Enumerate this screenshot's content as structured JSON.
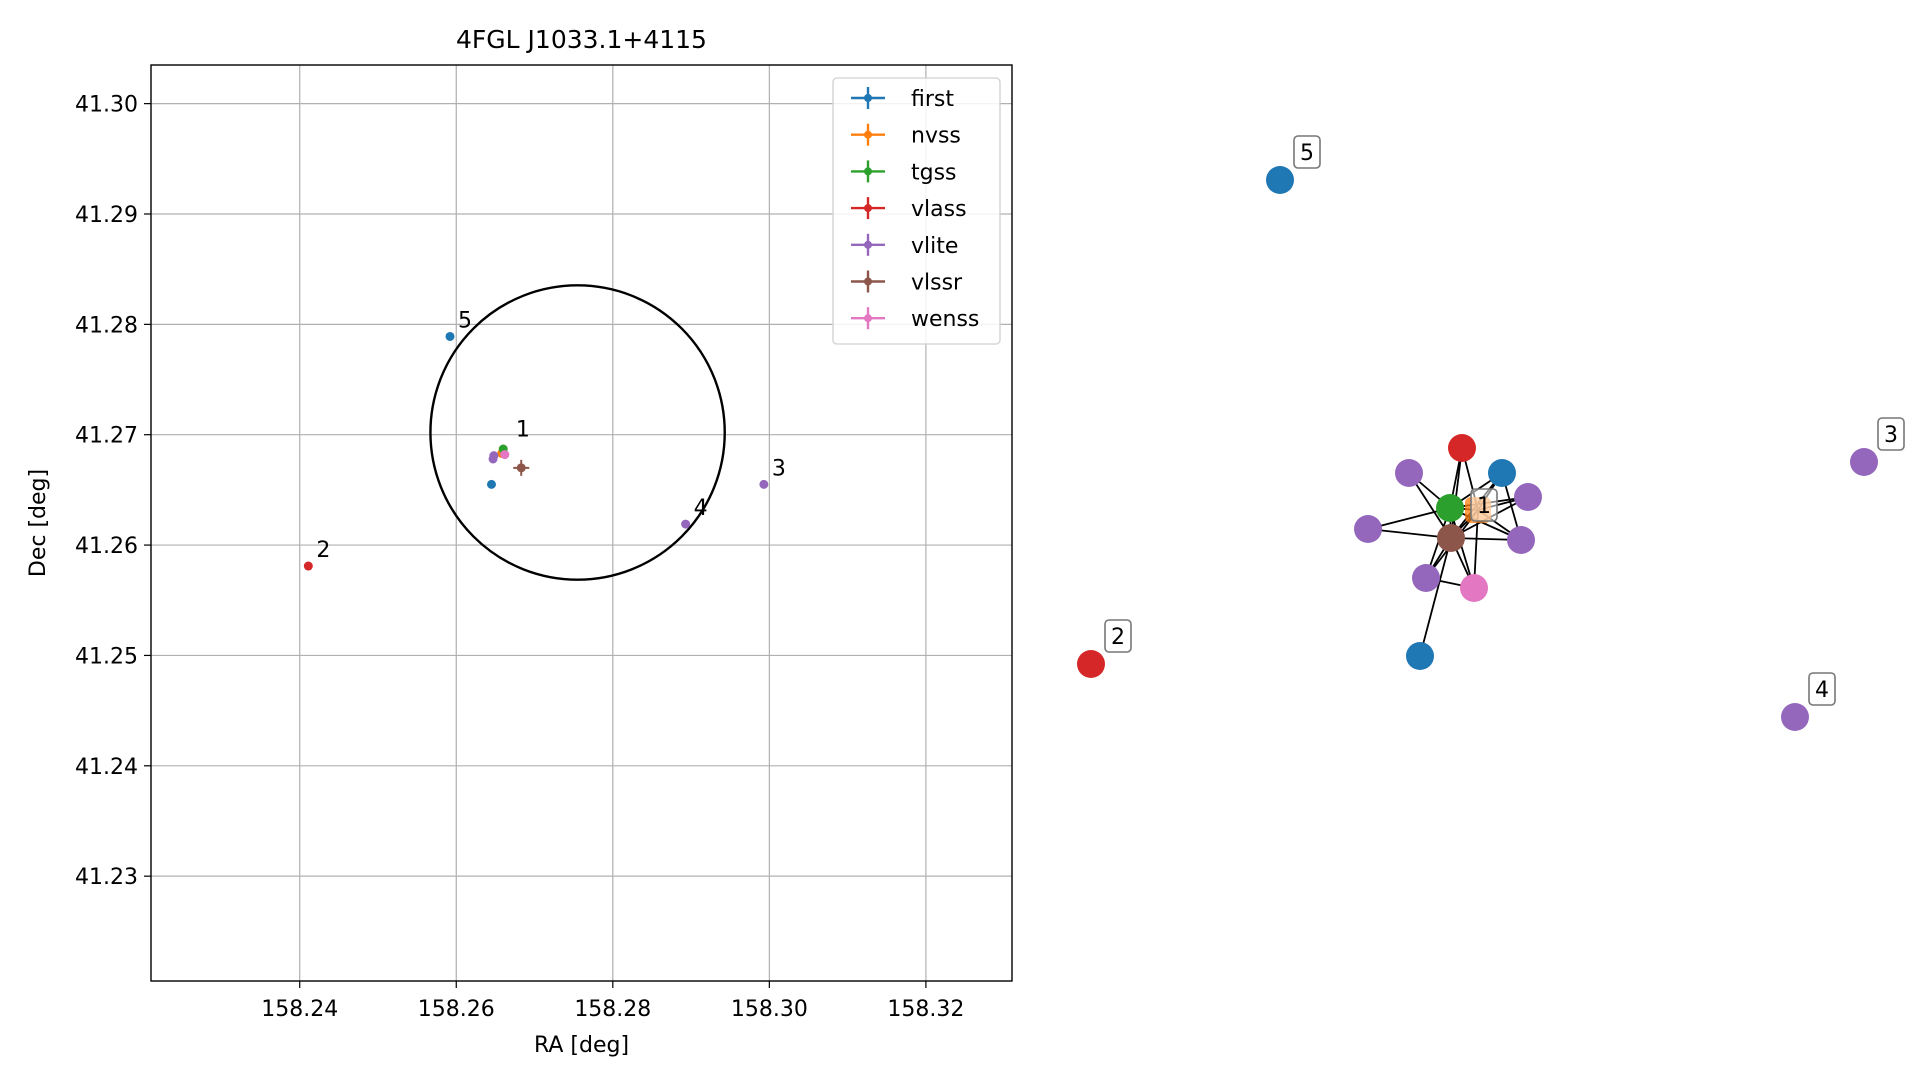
{
  "chart_data": [
    {
      "type": "scatter",
      "title": "4FGL J1033.1+4115",
      "xlabel": "RA [deg]",
      "ylabel": "Dec [deg]",
      "xlim": [
        158.221,
        158.331
      ],
      "ylim": [
        41.2205,
        41.3035
      ],
      "xticks": [
        "158.24",
        "158.26",
        "158.28",
        "158.30",
        "158.32"
      ],
      "yticks": [
        "41.23",
        "41.24",
        "41.25",
        "41.26",
        "41.27",
        "41.28",
        "41.29",
        "41.30"
      ],
      "grid": true,
      "legend_position": "top-right",
      "circle": {
        "ra": 158.2755,
        "dec": 41.2702,
        "radius": 0.0188
      },
      "series": [
        {
          "name": "first",
          "color": "#1f77b4",
          "points": [
            {
              "x": 158.2592,
              "y": 41.2789
            },
            {
              "x": 158.2645,
              "y": 41.2655
            }
          ]
        },
        {
          "name": "nvss",
          "color": "#ff7f0e",
          "points": [
            {
              "x": 158.2658,
              "y": 41.2683
            }
          ]
        },
        {
          "name": "tgss",
          "color": "#2ca02c",
          "points": [
            {
              "x": 158.266,
              "y": 41.2687
            }
          ]
        },
        {
          "name": "vlass",
          "color": "#d62728",
          "points": [
            {
              "x": 158.2411,
              "y": 41.2581
            }
          ]
        },
        {
          "name": "vlite",
          "color": "#9467bd",
          "points": [
            {
              "x": 158.2647,
              "y": 41.2678
            },
            {
              "x": 158.2648,
              "y": 41.2681
            },
            {
              "x": 158.2893,
              "y": 41.2619
            },
            {
              "x": 158.2993,
              "y": 41.2655
            }
          ]
        },
        {
          "name": "vlssr",
          "color": "#8c564b",
          "points": [
            {
              "x": 158.2683,
              "y": 41.267
            }
          ]
        },
        {
          "name": "wenss",
          "color": "#e377c2",
          "points": [
            {
              "x": 158.2662,
              "y": 41.2682
            }
          ]
        }
      ],
      "annotations": [
        {
          "label": "1",
          "x": 158.2666,
          "y": 41.269
        },
        {
          "label": "2",
          "x": 158.2411,
          "y": 41.2581
        },
        {
          "label": "3",
          "x": 158.2993,
          "y": 41.2655
        },
        {
          "label": "4",
          "x": 158.2893,
          "y": 41.2619
        },
        {
          "label": "5",
          "x": 158.2592,
          "y": 41.2789
        }
      ]
    },
    {
      "type": "network",
      "nodes": [
        {
          "id": "n1",
          "color": "#d62728"
        },
        {
          "id": "n2",
          "color": "#1f77b4"
        },
        {
          "id": "n3",
          "color": "#9467bd"
        },
        {
          "id": "n4",
          "color": "#2ca02c"
        },
        {
          "id": "n5",
          "color": "#ff7f0e",
          "shape": "square"
        },
        {
          "id": "n6",
          "color": "#9467bd"
        },
        {
          "id": "n7",
          "color": "#9467bd"
        },
        {
          "id": "n8",
          "color": "#8c564b"
        },
        {
          "id": "n9",
          "color": "#9467bd"
        },
        {
          "id": "n10",
          "color": "#9467bd"
        },
        {
          "id": "n11",
          "color": "#e377c2"
        },
        {
          "id": "n12",
          "color": "#1f77b4"
        },
        {
          "id": "g2",
          "color": "#d62728",
          "label": "2"
        },
        {
          "id": "g3",
          "color": "#9467bd",
          "label": "3"
        },
        {
          "id": "g4",
          "color": "#9467bd",
          "label": "4"
        },
        {
          "id": "g5",
          "color": "#1f77b4",
          "label": "5"
        }
      ],
      "cluster_label": "1"
    }
  ]
}
